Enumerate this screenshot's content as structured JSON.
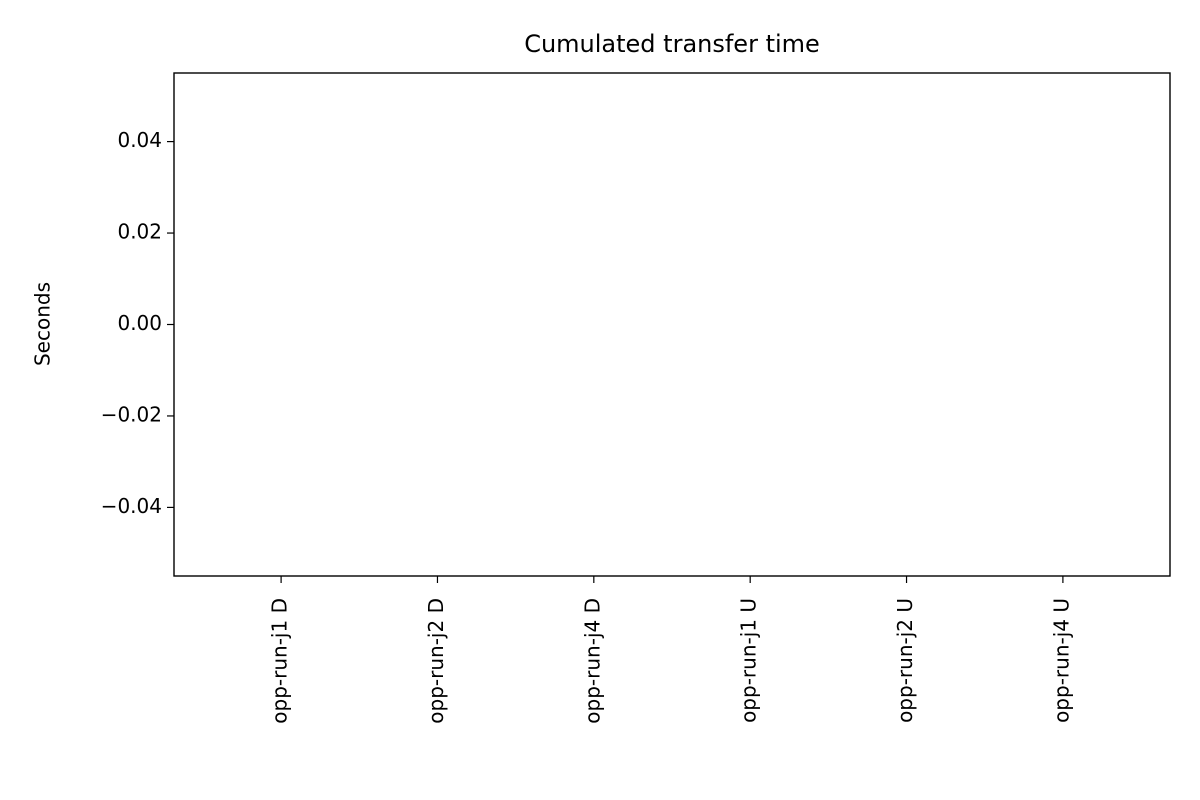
{
  "chart_data": {
    "type": "bar",
    "title": "Cumulated transfer time",
    "y_label": "Seconds",
    "categories": [
      "opp-run-j1 D",
      "opp-run-j2 D",
      "opp-run-j4 D",
      "opp-run-j1 U",
      "opp-run-j2 U",
      "opp-run-j4 U"
    ],
    "values": [
      0,
      0,
      0,
      0,
      0,
      0
    ],
    "ylim": [
      -0.055,
      0.055
    ],
    "yticks": [
      {
        "value": -0.04,
        "label": "−0.04"
      },
      {
        "value": -0.02,
        "label": "−0.02"
      },
      {
        "value": 0,
        "label": "0.00"
      },
      0.02,
      0.04
    ],
    "grid": false
  }
}
